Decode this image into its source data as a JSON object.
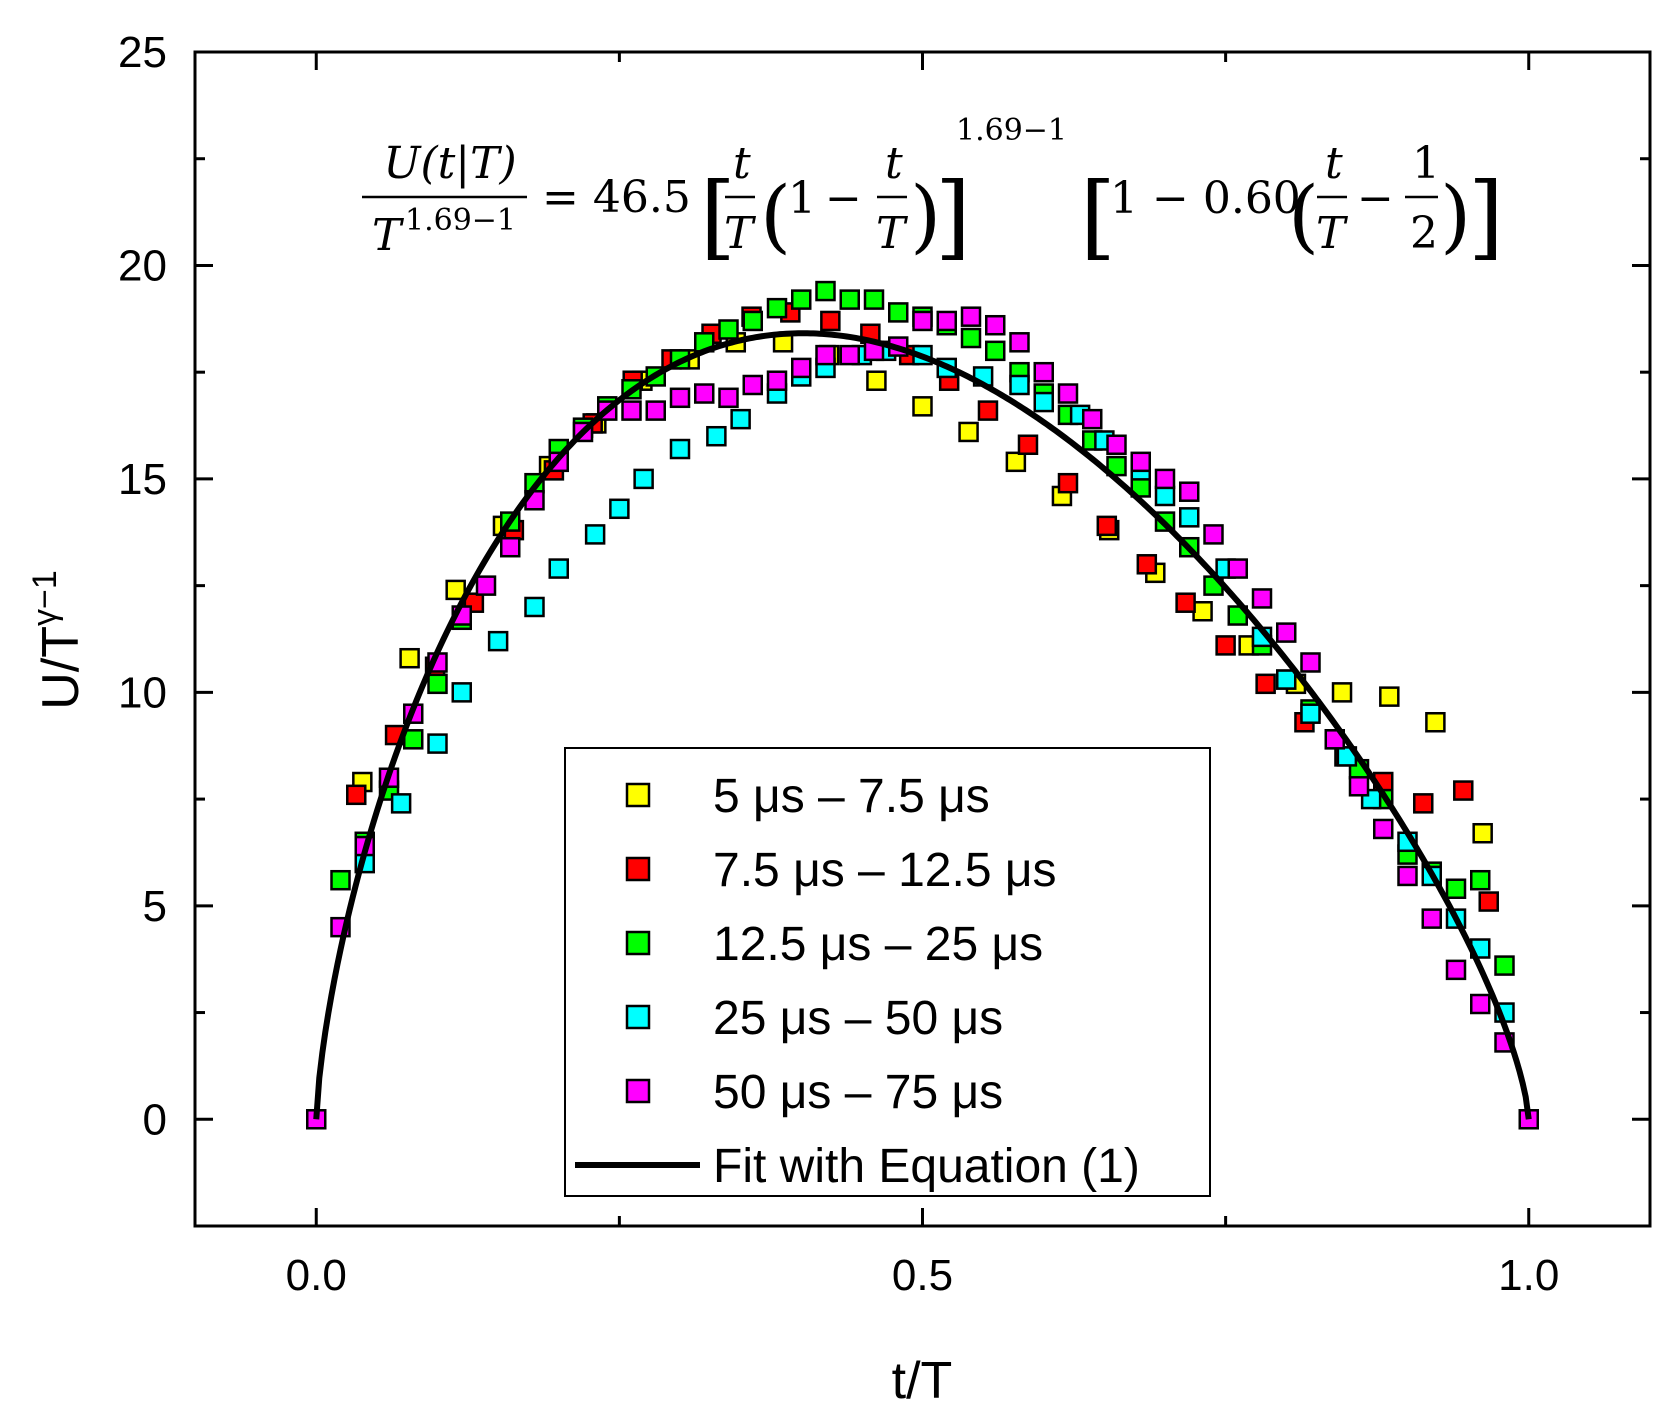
{
  "chart_data": {
    "type": "scatter",
    "xlabel": "t/T",
    "ylabel": "U/T",
    "ylabel_superscript": "γ−1",
    "xlim": [
      -0.1,
      1.1
    ],
    "ylim": [
      -2.5,
      25
    ],
    "xticks": [
      0.0,
      0.5,
      1.0
    ],
    "xtick_labels": [
      "0.0",
      "0.5",
      "1.0"
    ],
    "yticks": [
      0,
      5,
      10,
      15,
      20,
      25
    ],
    "ytick_labels": [
      "0",
      "5",
      "10",
      "15",
      "20",
      "25"
    ],
    "grid": false,
    "legend_position": "bottom-center",
    "equation": {
      "lhs_num": "U(t|T)",
      "lhs_den": "T",
      "lhs_den_exp": "1.69−1",
      "coef": "= 46.5",
      "t": "t",
      "T": "T",
      "one": "1",
      "minus": "−",
      "exp": "1.69−1",
      "factor": "1 − 0.60",
      "half_num": "1",
      "half_den": "2"
    },
    "fit": {
      "name": "Fit with Equation (1)",
      "color": "#000000",
      "formula": "46.5*(x*(1-x))^0.69*(1-0.60*(x-0.5))"
    },
    "series": [
      {
        "name": "5 μs – 7.5 μs",
        "color": "#ffff00",
        "x": [
          0.038,
          0.077,
          0.115,
          0.154,
          0.192,
          0.231,
          0.269,
          0.308,
          0.346,
          0.385,
          0.423,
          0.462,
          0.5,
          0.538,
          0.577,
          0.615,
          0.654,
          0.692,
          0.731,
          0.769,
          0.808,
          0.846,
          0.885,
          0.923,
          0.962
        ],
        "y": [
          7.9,
          10.8,
          12.4,
          13.9,
          15.3,
          16.3,
          17.3,
          17.8,
          18.2,
          18.2,
          17.9,
          17.3,
          16.7,
          16.1,
          15.4,
          14.6,
          13.8,
          12.8,
          11.9,
          11.1,
          10.2,
          10.0,
          9.9,
          9.3,
          6.7
        ]
      },
      {
        "name": "7.5 μs – 12.5 μs",
        "color": "#ff0000",
        "x": [
          0.033,
          0.065,
          0.098,
          0.13,
          0.163,
          0.196,
          0.228,
          0.261,
          0.293,
          0.326,
          0.359,
          0.391,
          0.424,
          0.457,
          0.489,
          0.522,
          0.554,
          0.587,
          0.62,
          0.652,
          0.685,
          0.717,
          0.75,
          0.783,
          0.815,
          0.848,
          0.88,
          0.913,
          0.946,
          0.967
        ],
        "y": [
          7.6,
          9.0,
          10.6,
          12.1,
          13.8,
          15.2,
          16.3,
          17.3,
          17.8,
          18.4,
          18.8,
          18.9,
          18.7,
          18.4,
          17.9,
          17.3,
          16.6,
          15.8,
          14.9,
          13.9,
          13.0,
          12.1,
          11.1,
          10.2,
          9.3,
          8.5,
          7.9,
          7.4,
          7.7,
          5.1
        ]
      },
      {
        "name": "12.5 μs – 25 μs",
        "color": "#00ff00",
        "x": [
          0.02,
          0.04,
          0.06,
          0.08,
          0.1,
          0.12,
          0.16,
          0.18,
          0.2,
          0.22,
          0.24,
          0.26,
          0.28,
          0.3,
          0.32,
          0.34,
          0.36,
          0.38,
          0.4,
          0.42,
          0.44,
          0.46,
          0.48,
          0.5,
          0.52,
          0.54,
          0.56,
          0.58,
          0.6,
          0.62,
          0.64,
          0.66,
          0.68,
          0.7,
          0.72,
          0.74,
          0.76,
          0.78,
          0.8,
          0.82,
          0.84,
          0.86,
          0.88,
          0.9,
          0.92,
          0.94,
          0.96,
          0.98
        ],
        "y": [
          5.6,
          6.5,
          7.7,
          8.9,
          10.2,
          11.7,
          14.0,
          14.9,
          15.7,
          16.2,
          16.7,
          17.1,
          17.4,
          17.8,
          18.2,
          18.5,
          18.7,
          19.0,
          19.2,
          19.4,
          19.2,
          19.2,
          18.9,
          18.8,
          18.6,
          18.3,
          18.0,
          17.5,
          17.0,
          16.5,
          15.9,
          15.3,
          14.8,
          14.0,
          13.4,
          12.5,
          11.8,
          11.1,
          10.3,
          9.6,
          8.9,
          8.2,
          7.5,
          6.2,
          5.8,
          5.4,
          5.6,
          3.6
        ]
      },
      {
        "name": "25 μs – 50 μs",
        "color": "#00ffff",
        "x": [
          0.04,
          0.07,
          0.1,
          0.12,
          0.15,
          0.18,
          0.2,
          0.23,
          0.25,
          0.27,
          0.3,
          0.33,
          0.35,
          0.38,
          0.4,
          0.42,
          0.45,
          0.47,
          0.5,
          0.52,
          0.55,
          0.58,
          0.6,
          0.63,
          0.65,
          0.68,
          0.7,
          0.72,
          0.75,
          0.78,
          0.8,
          0.82,
          0.85,
          0.87,
          0.9,
          0.92,
          0.94,
          0.96,
          0.98
        ],
        "y": [
          6.0,
          7.4,
          8.8,
          10.0,
          11.2,
          12.0,
          12.9,
          13.7,
          14.3,
          15.0,
          15.7,
          16.0,
          16.4,
          17.0,
          17.4,
          17.6,
          17.9,
          18.0,
          17.9,
          17.6,
          17.4,
          17.2,
          16.8,
          16.5,
          15.9,
          15.2,
          14.6,
          14.1,
          12.9,
          11.3,
          10.3,
          9.5,
          8.5,
          7.5,
          6.5,
          5.7,
          4.7,
          4.0,
          2.5
        ]
      },
      {
        "name": "50 μs – 75 μs",
        "color": "#ff00ff",
        "x": [
          0.0,
          0.02,
          0.04,
          0.06,
          0.08,
          0.1,
          0.12,
          0.14,
          0.16,
          0.18,
          0.2,
          0.22,
          0.24,
          0.26,
          0.28,
          0.3,
          0.32,
          0.34,
          0.36,
          0.38,
          0.4,
          0.42,
          0.44,
          0.46,
          0.48,
          0.5,
          0.52,
          0.54,
          0.56,
          0.58,
          0.6,
          0.62,
          0.64,
          0.66,
          0.68,
          0.7,
          0.72,
          0.74,
          0.76,
          0.78,
          0.8,
          0.82,
          0.84,
          0.86,
          0.88,
          0.9,
          0.92,
          0.94,
          0.96,
          0.98,
          1.0
        ],
        "y": [
          0.0,
          4.5,
          6.4,
          8.0,
          9.5,
          10.7,
          11.8,
          12.5,
          13.4,
          14.5,
          15.4,
          16.1,
          16.6,
          16.6,
          16.6,
          16.9,
          17.0,
          16.9,
          17.2,
          17.3,
          17.6,
          17.9,
          17.9,
          18.0,
          18.1,
          18.7,
          18.7,
          18.8,
          18.6,
          18.2,
          17.5,
          17.0,
          16.4,
          15.8,
          15.4,
          15.0,
          14.7,
          13.7,
          12.9,
          12.2,
          11.4,
          10.7,
          8.9,
          7.8,
          6.8,
          5.7,
          4.7,
          3.5,
          2.7,
          1.8,
          0.0
        ]
      }
    ]
  }
}
